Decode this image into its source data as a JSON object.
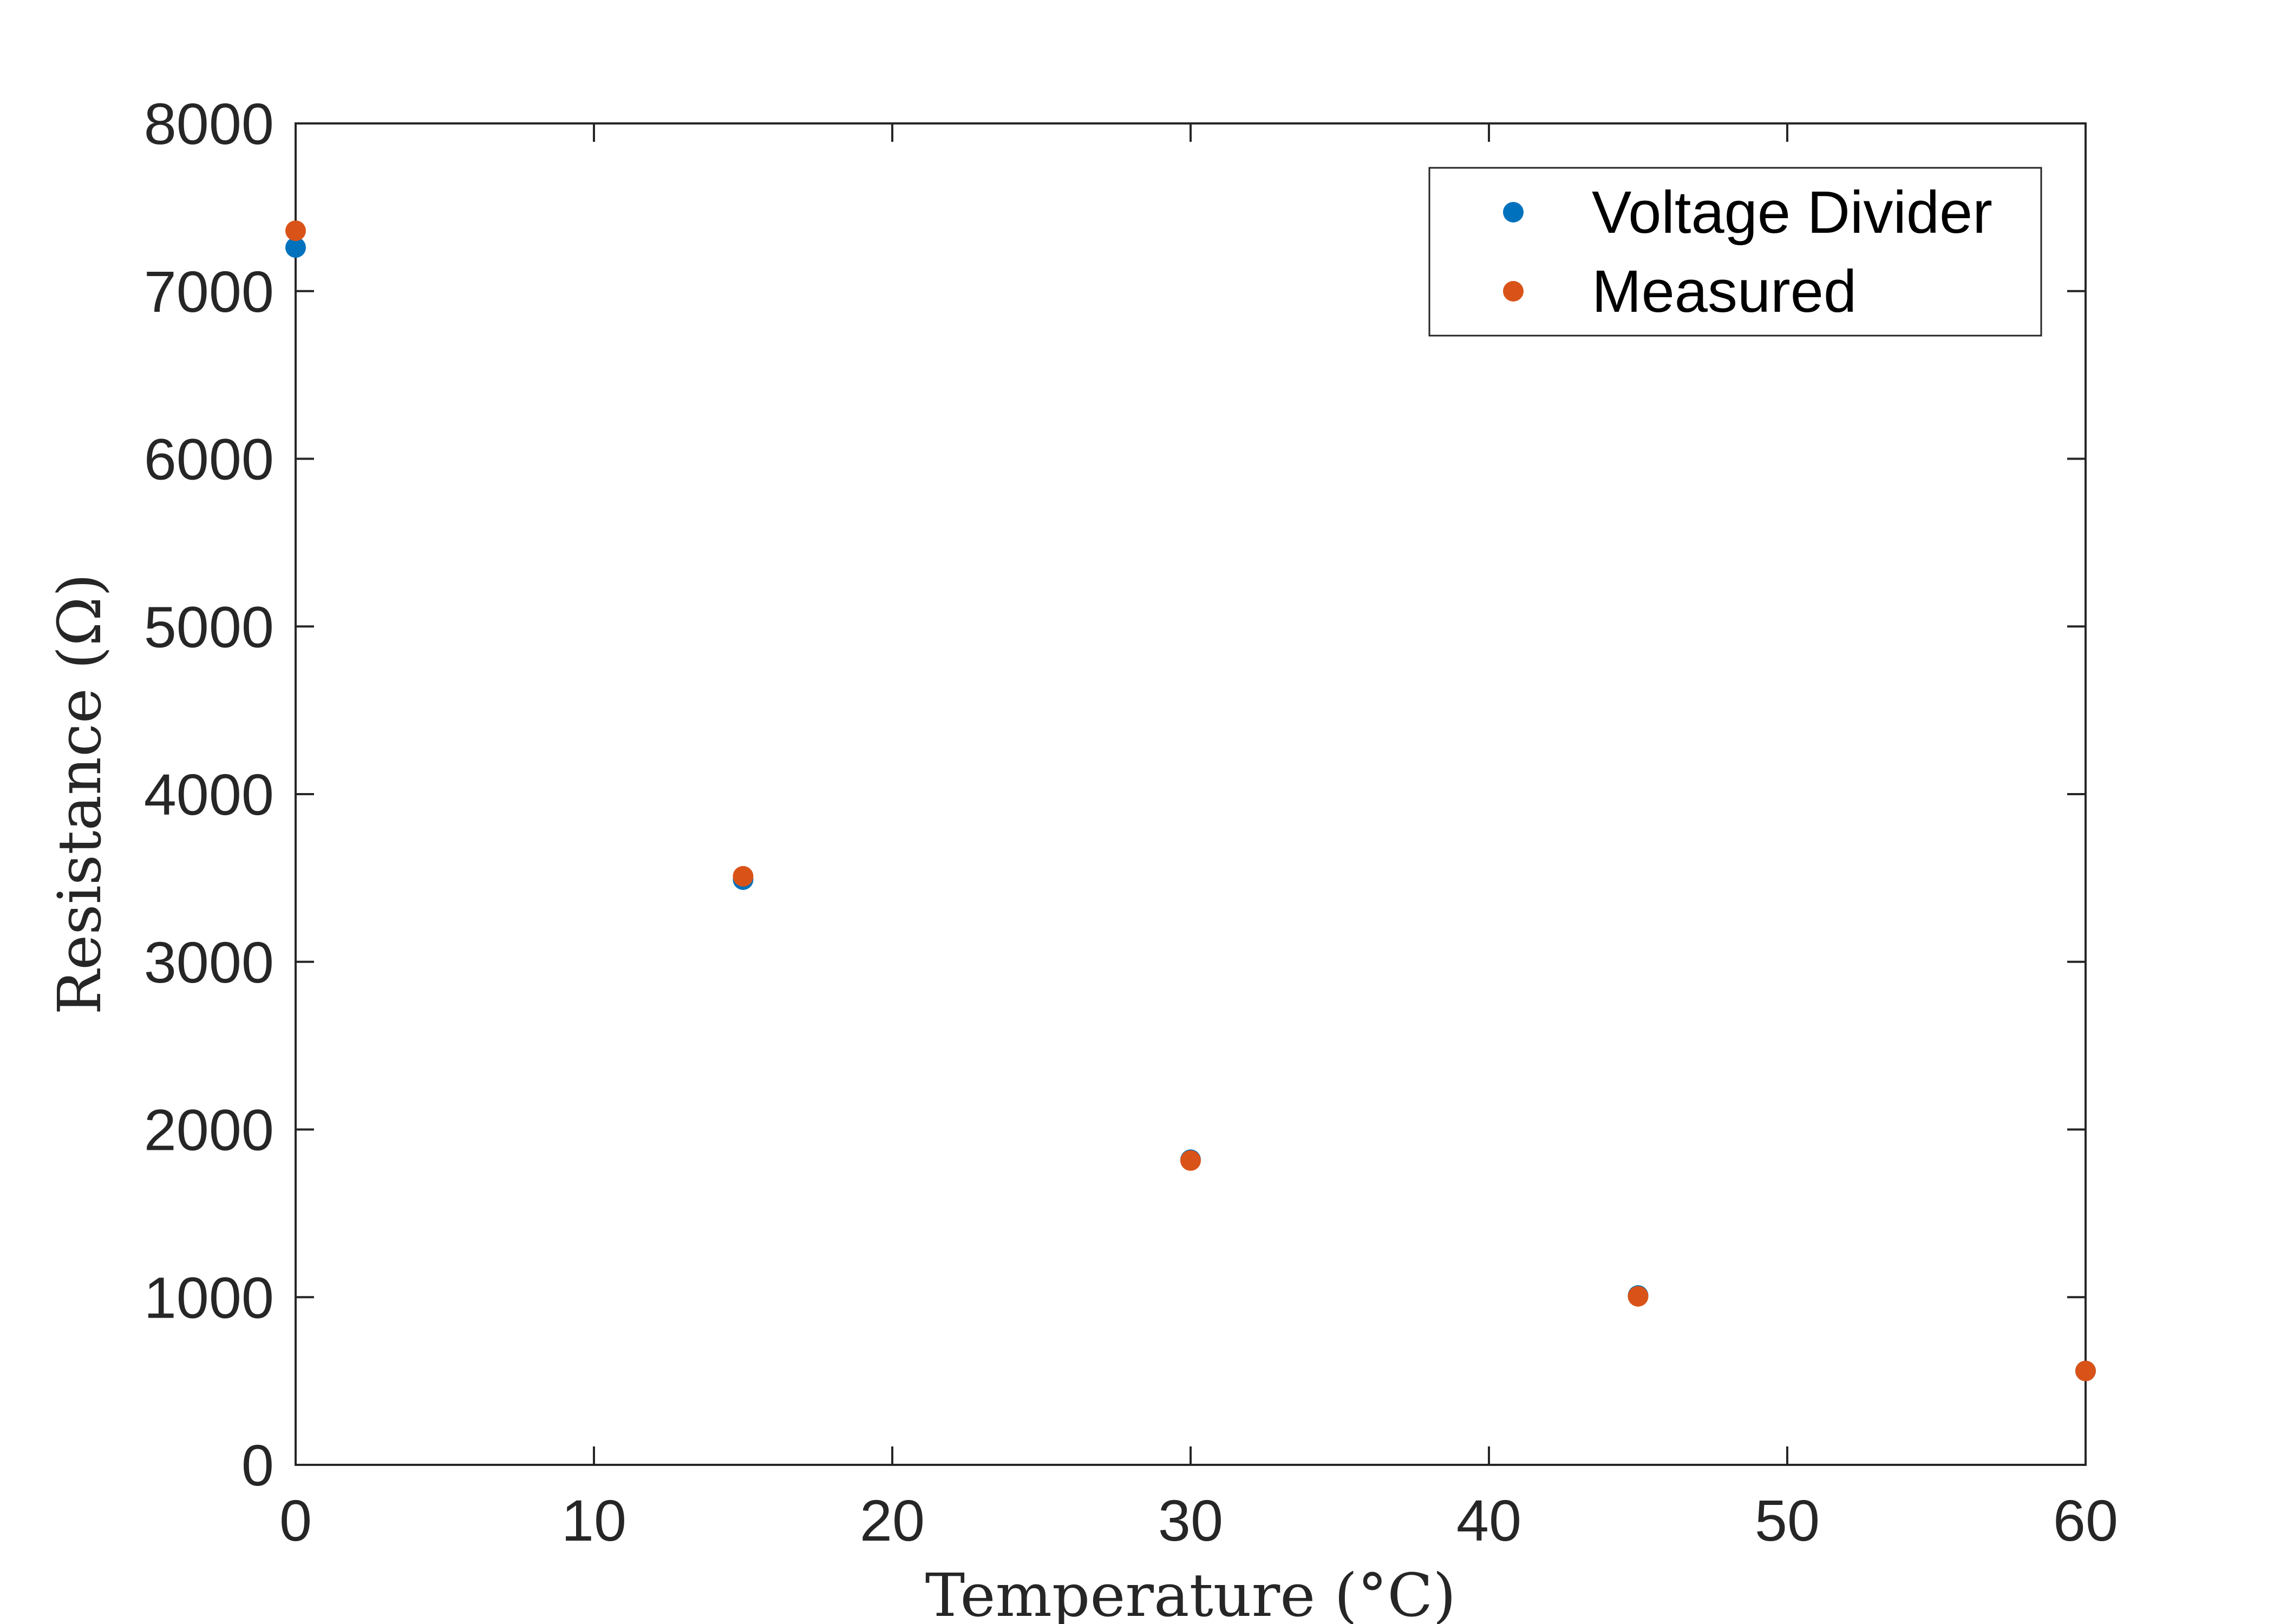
{
  "chart_data": {
    "type": "scatter",
    "xlabel": "Temperature (°C)",
    "ylabel": "Resistance (Ω)",
    "xlim": [
      0,
      60
    ],
    "ylim": [
      0,
      8000
    ],
    "xticks": [
      0,
      10,
      20,
      30,
      40,
      50,
      60
    ],
    "yticks": [
      0,
      1000,
      2000,
      3000,
      4000,
      5000,
      6000,
      7000,
      8000
    ],
    "grid": false,
    "legend_position": "top-right",
    "series": [
      {
        "name": "Voltage Divider",
        "color": "#0072BD",
        "x": [
          0,
          15,
          30,
          45,
          60
        ],
        "y": [
          7260,
          3490,
          1820,
          1010,
          560
        ]
      },
      {
        "name": "Measured",
        "color": "#D95319",
        "x": [
          0,
          15,
          30,
          45,
          60
        ],
        "y": [
          7360,
          3510,
          1815,
          1005,
          560
        ]
      }
    ]
  }
}
